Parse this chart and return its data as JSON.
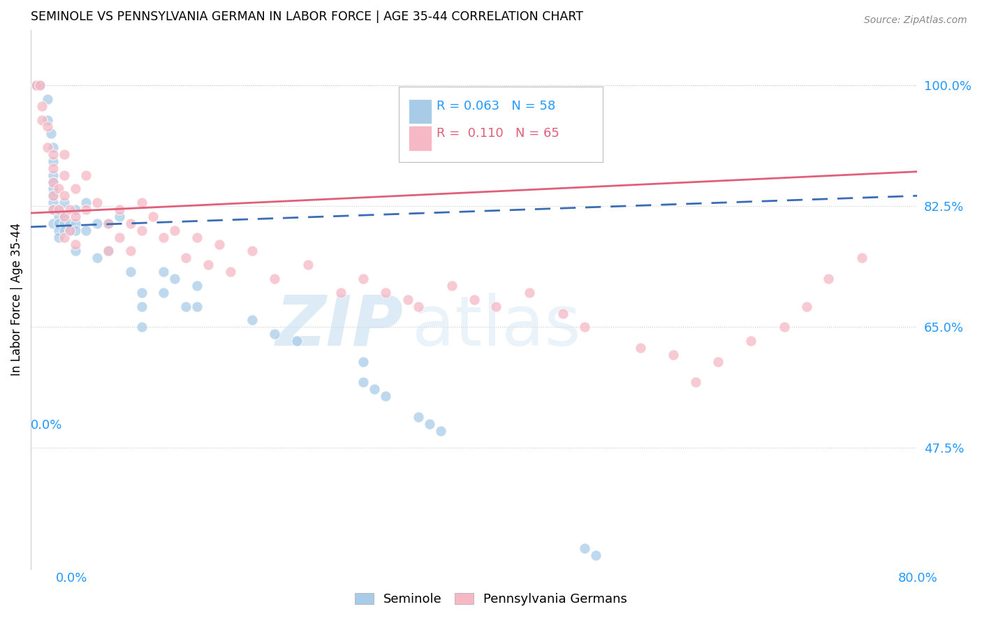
{
  "title": "SEMINOLE VS PENNSYLVANIA GERMAN IN LABOR FORCE | AGE 35-44 CORRELATION CHART",
  "source": "Source: ZipAtlas.com",
  "ylabel": "In Labor Force | Age 35-44",
  "yticks": [
    "47.5%",
    "65.0%",
    "82.5%",
    "100.0%"
  ],
  "ytick_vals": [
    0.475,
    0.65,
    0.825,
    1.0
  ],
  "xlim": [
    0.0,
    0.8
  ],
  "ylim": [
    0.3,
    1.08
  ],
  "watermark_zip": "ZIP",
  "watermark_atlas": "atlas",
  "legend_R_blue": "0.063",
  "legend_N_blue": "58",
  "legend_R_pink": "0.110",
  "legend_N_pink": "65",
  "blue_color": "#a8cce8",
  "pink_color": "#f5b8c4",
  "blue_line_color": "#3a6db5",
  "pink_line_color": "#e0607a",
  "blue_scatter_x": [
    0.005,
    0.008,
    0.015,
    0.015,
    0.018,
    0.02,
    0.02,
    0.02,
    0.02,
    0.02,
    0.02,
    0.02,
    0.02,
    0.02,
    0.025,
    0.025,
    0.025,
    0.025,
    0.025,
    0.03,
    0.03,
    0.03,
    0.03,
    0.035,
    0.035,
    0.04,
    0.04,
    0.04,
    0.04,
    0.05,
    0.05,
    0.06,
    0.06,
    0.07,
    0.07,
    0.08,
    0.09,
    0.1,
    0.1,
    0.1,
    0.12,
    0.12,
    0.13,
    0.14,
    0.15,
    0.15,
    0.2,
    0.22,
    0.24,
    0.3,
    0.3,
    0.31,
    0.32,
    0.35,
    0.36,
    0.37,
    0.5,
    0.51
  ],
  "blue_scatter_y": [
    1.0,
    1.0,
    0.98,
    0.95,
    0.93,
    0.91,
    0.89,
    0.87,
    0.86,
    0.85,
    0.84,
    0.83,
    0.82,
    0.8,
    0.82,
    0.81,
    0.8,
    0.79,
    0.78,
    0.83,
    0.81,
    0.8,
    0.79,
    0.8,
    0.79,
    0.82,
    0.8,
    0.79,
    0.76,
    0.83,
    0.79,
    0.8,
    0.75,
    0.8,
    0.76,
    0.81,
    0.73,
    0.7,
    0.68,
    0.65,
    0.73,
    0.7,
    0.72,
    0.68,
    0.71,
    0.68,
    0.66,
    0.64,
    0.63,
    0.6,
    0.57,
    0.56,
    0.55,
    0.52,
    0.51,
    0.5,
    0.33,
    0.32
  ],
  "pink_scatter_x": [
    0.005,
    0.008,
    0.01,
    0.01,
    0.015,
    0.015,
    0.02,
    0.02,
    0.02,
    0.02,
    0.02,
    0.025,
    0.025,
    0.03,
    0.03,
    0.03,
    0.03,
    0.03,
    0.035,
    0.035,
    0.04,
    0.04,
    0.04,
    0.05,
    0.05,
    0.06,
    0.07,
    0.07,
    0.08,
    0.08,
    0.09,
    0.09,
    0.1,
    0.1,
    0.11,
    0.12,
    0.13,
    0.14,
    0.15,
    0.16,
    0.17,
    0.18,
    0.2,
    0.22,
    0.25,
    0.28,
    0.3,
    0.32,
    0.34,
    0.35,
    0.38,
    0.4,
    0.42,
    0.45,
    0.48,
    0.5,
    0.55,
    0.58,
    0.6,
    0.62,
    0.65,
    0.68,
    0.7,
    0.72,
    0.75
  ],
  "pink_scatter_y": [
    1.0,
    1.0,
    0.97,
    0.95,
    0.94,
    0.91,
    0.9,
    0.88,
    0.86,
    0.84,
    0.82,
    0.85,
    0.82,
    0.9,
    0.87,
    0.84,
    0.81,
    0.78,
    0.82,
    0.79,
    0.85,
    0.81,
    0.77,
    0.87,
    0.82,
    0.83,
    0.8,
    0.76,
    0.82,
    0.78,
    0.8,
    0.76,
    0.83,
    0.79,
    0.81,
    0.78,
    0.79,
    0.75,
    0.78,
    0.74,
    0.77,
    0.73,
    0.76,
    0.72,
    0.74,
    0.7,
    0.72,
    0.7,
    0.69,
    0.68,
    0.71,
    0.69,
    0.68,
    0.7,
    0.67,
    0.65,
    0.62,
    0.61,
    0.57,
    0.6,
    0.63,
    0.65,
    0.68,
    0.72,
    0.75
  ]
}
